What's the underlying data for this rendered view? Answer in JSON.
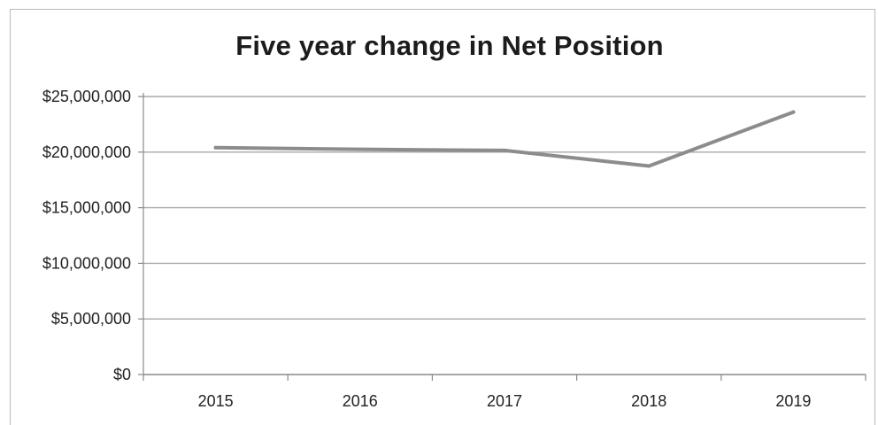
{
  "chart_data": {
    "type": "line",
    "title": "Five year change in Net Position",
    "xlabel": "",
    "ylabel": "",
    "categories": [
      "2015",
      "2016",
      "2017",
      "2018",
      "2019"
    ],
    "series": [
      {
        "values": [
          20400000,
          20250000,
          20150000,
          18750000,
          23600000
        ],
        "color": "#8c8c8c"
      }
    ],
    "ylim": [
      0,
      25000000
    ],
    "y_ticks": [
      0,
      5000000,
      10000000,
      15000000,
      20000000,
      25000000
    ],
    "y_tick_labels": [
      "$0",
      "$5,000,000",
      "$10,000,000",
      "$15,000,000",
      "$20,000,000",
      "$25,000,000"
    ],
    "grid": true,
    "legend": "none"
  }
}
